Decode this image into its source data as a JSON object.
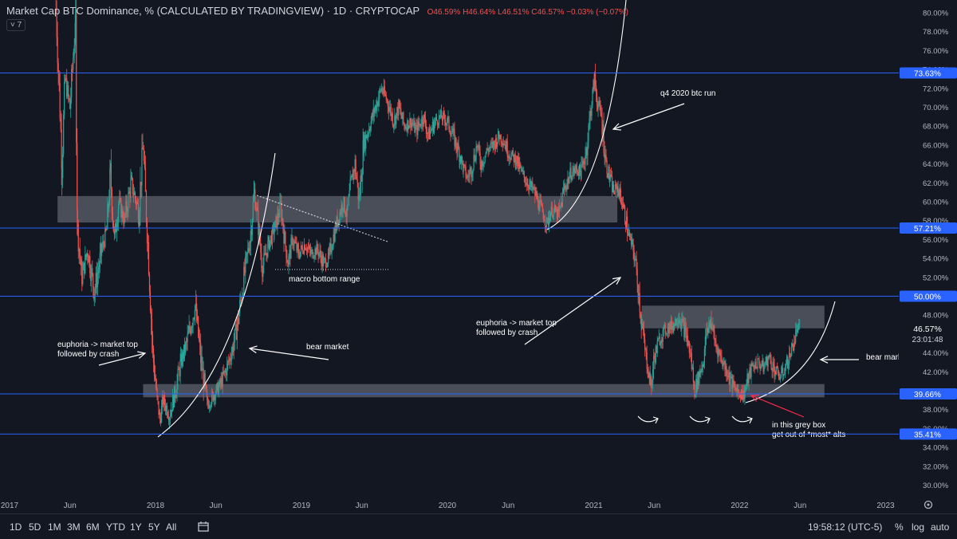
{
  "header": {
    "title": "Market Cap BTC Dominance, % (CALCULATED BY TRADINGVIEW) · 1D · CRYPTOCAP",
    "ohlc": "O46.59% H46.64% L46.51% C46.57% −0.03% (−0.07%)",
    "indicator_badge": "˅ 7"
  },
  "colors": {
    "background": "#131722",
    "up": "#26a69a",
    "down": "#ef5350",
    "hline": "#2962ff",
    "box": "#787b86",
    "drawing": "#ffffff"
  },
  "timeframes": [
    "1D",
    "5D",
    "1M",
    "3M",
    "6M",
    "YTD",
    "1Y",
    "5Y",
    "All"
  ],
  "status": {
    "clock": "19:58:12 (UTC-5)",
    "percent": "%",
    "log": "log",
    "auto": "auto"
  },
  "annotations": {
    "macro_bottom": "macro bottom range",
    "q4_run": "q4 2020 btc run",
    "euphoria_1": "euphoria -> market top\nfollowed by crash",
    "bear_1": "bear market",
    "euphoria_2": "euphoria -> market top\nfollowed by crash",
    "bear_2": "bear market",
    "grey_box": "in this grey box\nget out of *most* alts"
  },
  "chart_data": {
    "type": "candlestick",
    "title": "Market Cap BTC Dominance, % (CALCULATED BY TRADINGVIEW)",
    "interval": "1D",
    "y_unit": "%",
    "ylim": [
      29.3,
      80.8
    ],
    "x_ticks": [
      "2017",
      "Jun",
      "2018",
      "Jun",
      "2019",
      "Jun",
      "2020",
      "Jun",
      "2021",
      "Jun",
      "2022",
      "Jun",
      "2023"
    ],
    "y_ticks": [
      80,
      78,
      76,
      74,
      72,
      70,
      68,
      66,
      64,
      62,
      60,
      58,
      56,
      54,
      52,
      50,
      48,
      46,
      44,
      42,
      40,
      38,
      36,
      34,
      32,
      30
    ],
    "horizontal_levels": [
      73.63,
      57.21,
      50.0,
      39.66,
      35.41
    ],
    "last_price": 46.57,
    "countdown": "23:01:48",
    "grey_boxes": [
      {
        "from": "2017-05",
        "to": "2021-03",
        "top": 60.6,
        "bottom": 57.8
      },
      {
        "from": "2021-05",
        "to": "2022-08",
        "top": 49.0,
        "bottom": 46.6
      },
      {
        "from": "2017-12",
        "to": "2022-08",
        "top": 40.7,
        "bottom": 39.3
      }
    ],
    "path_points": [
      [
        "2017-04-27",
        80.5
      ],
      [
        "2017-05-05",
        72.0
      ],
      [
        "2017-05-12",
        64.0
      ],
      [
        "2017-05-20",
        73.0
      ],
      [
        "2017-06-01",
        70.0
      ],
      [
        "2017-06-10",
        76.0
      ],
      [
        "2017-06-15",
        78.5
      ],
      [
        "2017-06-20",
        57.0
      ],
      [
        "2017-07-01",
        52.0
      ],
      [
        "2017-07-15",
        55.0
      ],
      [
        "2017-08-01",
        50.5
      ],
      [
        "2017-08-20",
        55.0
      ],
      [
        "2017-09-01",
        57.0
      ],
      [
        "2017-09-10",
        63.0
      ],
      [
        "2017-09-20",
        56.0
      ],
      [
        "2017-10-01",
        60.0
      ],
      [
        "2017-10-15",
        58.0
      ],
      [
        "2017-11-01",
        62.0
      ],
      [
        "2017-11-20",
        59.0
      ],
      [
        "2017-12-01",
        66.0
      ],
      [
        "2017-12-05",
        62.0
      ],
      [
        "2017-12-15",
        54.0
      ],
      [
        "2017-12-25",
        44.0
      ],
      [
        "2018-01-05",
        39.0
      ],
      [
        "2018-01-12",
        37.0
      ],
      [
        "2018-01-20",
        39.0
      ],
      [
        "2018-02-05",
        37.5
      ],
      [
        "2018-02-20",
        40.0
      ],
      [
        "2018-03-05",
        43.0
      ],
      [
        "2018-03-20",
        45.0
      ],
      [
        "2018-04-10",
        49.0
      ],
      [
        "2018-04-25",
        43.0
      ],
      [
        "2018-05-10",
        38.5
      ],
      [
        "2018-05-25",
        39.5
      ],
      [
        "2018-06-10",
        40.5
      ],
      [
        "2018-06-25",
        42.0
      ],
      [
        "2018-07-10",
        44.0
      ],
      [
        "2018-07-25",
        47.0
      ],
      [
        "2018-08-10",
        52.0
      ],
      [
        "2018-08-25",
        56.0
      ],
      [
        "2018-09-05",
        61.0
      ],
      [
        "2018-09-15",
        57.5
      ],
      [
        "2018-09-25",
        53.0
      ],
      [
        "2018-10-10",
        55.5
      ],
      [
        "2018-10-25",
        57.0
      ],
      [
        "2018-11-10",
        59.5
      ],
      [
        "2018-11-20",
        56.0
      ],
      [
        "2018-11-28",
        53.5
      ],
      [
        "2018-12-10",
        56.0
      ],
      [
        "2018-12-25",
        54.5
      ],
      [
        "2019-01-10",
        55.5
      ],
      [
        "2019-01-25",
        54.5
      ],
      [
        "2019-02-10",
        55.0
      ],
      [
        "2019-02-25",
        53.5
      ],
      [
        "2019-03-10",
        54.0
      ],
      [
        "2019-03-20",
        56.0
      ],
      [
        "2019-04-01",
        58.0
      ],
      [
        "2019-04-15",
        60.0
      ],
      [
        "2019-04-25",
        58.5
      ],
      [
        "2019-05-05",
        62.0
      ],
      [
        "2019-05-15",
        64.0
      ],
      [
        "2019-05-25",
        60.0
      ],
      [
        "2019-06-05",
        66.0
      ],
      [
        "2019-06-20",
        68.0
      ],
      [
        "2019-07-05",
        70.0
      ],
      [
        "2019-07-20",
        72.0
      ],
      [
        "2019-08-05",
        70.5
      ],
      [
        "2019-08-20",
        68.5
      ],
      [
        "2019-09-01",
        70.0
      ],
      [
        "2019-09-15",
        68.0
      ],
      [
        "2019-10-01",
        68.5
      ],
      [
        "2019-10-15",
        67.5
      ],
      [
        "2019-11-01",
        69.0
      ],
      [
        "2019-11-15",
        67.0
      ],
      [
        "2019-12-01",
        68.5
      ],
      [
        "2019-12-15",
        69.0
      ],
      [
        "2020-01-01",
        68.5
      ],
      [
        "2020-01-15",
        67.0
      ],
      [
        "2020-02-01",
        65.0
      ],
      [
        "2020-02-10",
        63.5
      ],
      [
        "2020-02-20",
        62.5
      ],
      [
        "2020-03-01",
        63.5
      ],
      [
        "2020-03-15",
        66.0
      ],
      [
        "2020-03-25",
        64.0
      ],
      [
        "2020-04-10",
        65.5
      ],
      [
        "2020-04-25",
        66.0
      ],
      [
        "2020-05-10",
        67.0
      ],
      [
        "2020-05-20",
        66.5
      ],
      [
        "2020-06-05",
        65.0
      ],
      [
        "2020-06-20",
        64.5
      ],
      [
        "2020-07-05",
        63.0
      ],
      [
        "2020-07-20",
        62.0
      ],
      [
        "2020-08-05",
        61.0
      ],
      [
        "2020-08-20",
        59.5
      ],
      [
        "2020-08-30",
        58.5
      ],
      [
        "2020-09-05",
        57.5
      ],
      [
        "2020-09-15",
        59.0
      ],
      [
        "2020-09-25",
        59.0
      ],
      [
        "2020-10-05",
        58.5
      ],
      [
        "2020-10-20",
        61.5
      ],
      [
        "2020-11-05",
        63.0
      ],
      [
        "2020-11-20",
        63.5
      ],
      [
        "2020-12-01",
        63.0
      ],
      [
        "2020-12-15",
        66.0
      ],
      [
        "2020-12-25",
        70.0
      ],
      [
        "2021-01-03",
        73.0
      ],
      [
        "2021-01-10",
        70.5
      ],
      [
        "2021-01-20",
        69.0
      ],
      [
        "2021-02-01",
        64.0
      ],
      [
        "2021-02-10",
        62.5
      ],
      [
        "2021-02-20",
        61.0
      ],
      [
        "2021-03-01",
        61.5
      ],
      [
        "2021-03-10",
        60.5
      ],
      [
        "2021-03-20",
        58.5
      ],
      [
        "2021-04-01",
        56.0
      ],
      [
        "2021-04-10",
        55.0
      ],
      [
        "2021-04-20",
        52.0
      ],
      [
        "2021-05-01",
        47.0
      ],
      [
        "2021-05-10",
        44.0
      ],
      [
        "2021-05-18",
        42.0
      ],
      [
        "2021-05-25",
        40.5
      ],
      [
        "2021-06-01",
        43.5
      ],
      [
        "2021-06-15",
        45.5
      ],
      [
        "2021-07-01",
        46.5
      ],
      [
        "2021-07-20",
        47.0
      ],
      [
        "2021-08-01",
        48.0
      ],
      [
        "2021-08-20",
        46.0
      ],
      [
        "2021-09-01",
        43.5
      ],
      [
        "2021-09-10",
        40.0
      ],
      [
        "2021-09-20",
        41.5
      ],
      [
        "2021-10-01",
        43.0
      ],
      [
        "2021-10-10",
        46.0
      ],
      [
        "2021-10-20",
        47.5
      ],
      [
        "2021-11-01",
        45.0
      ],
      [
        "2021-11-15",
        43.5
      ],
      [
        "2021-12-01",
        42.0
      ],
      [
        "2021-12-15",
        40.5
      ],
      [
        "2021-12-28",
        40.0
      ],
      [
        "2022-01-10",
        39.5
      ],
      [
        "2022-01-20",
        41.0
      ],
      [
        "2022-02-01",
        42.5
      ],
      [
        "2022-02-15",
        43.0
      ],
      [
        "2022-03-01",
        42.5
      ],
      [
        "2022-03-15",
        43.5
      ],
      [
        "2022-04-01",
        42.0
      ],
      [
        "2022-04-15",
        41.5
      ],
      [
        "2022-04-25",
        42.5
      ],
      [
        "2022-05-05",
        43.5
      ],
      [
        "2022-05-15",
        45.0
      ],
      [
        "2022-05-25",
        46.5
      ],
      [
        "2022-06-01",
        46.57
      ]
    ]
  }
}
